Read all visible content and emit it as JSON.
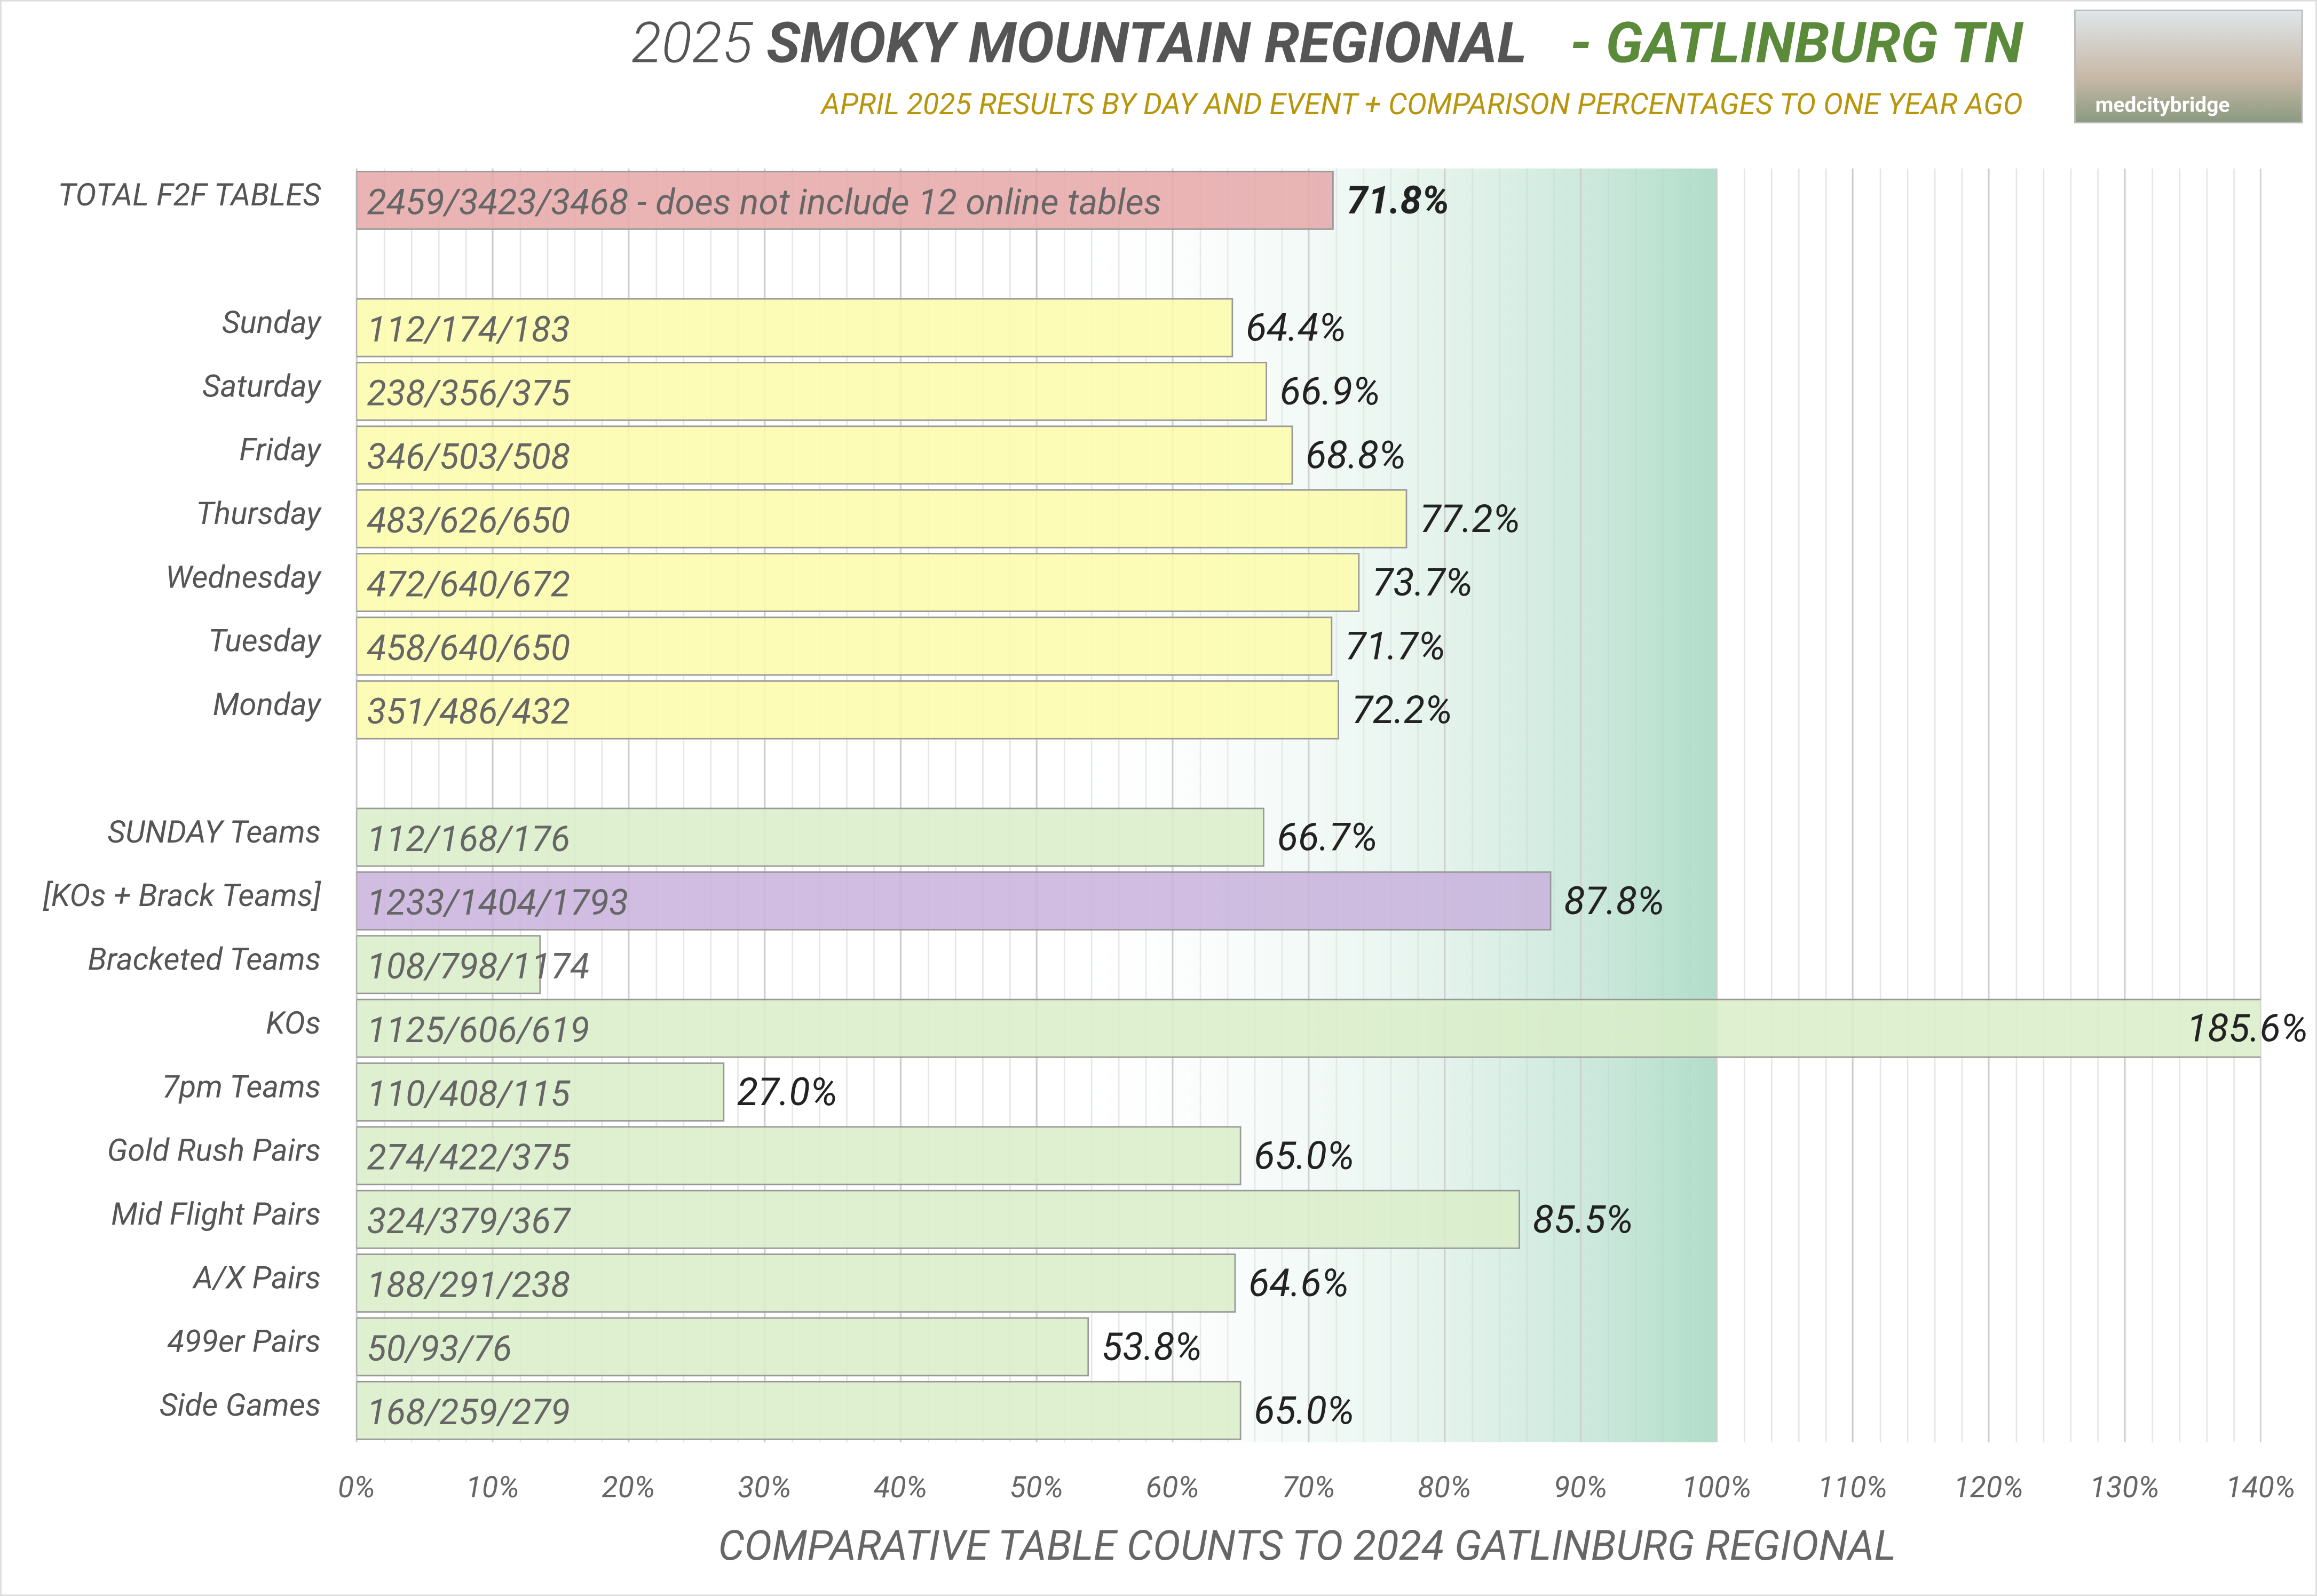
{
  "chart_data": {
    "type": "hbar",
    "title": {
      "year": "2025",
      "name": "SMOKY MOUNTAIN REGIONAL",
      "place": "- GATLINBURG TN"
    },
    "subtitle": "APRIL 2025 RESULTS BY DAY AND EVENT + COMPARISON PERCENTAGES TO ONE YEAR AGO",
    "logo_text": "medcitybridge",
    "x_label": "COMPARATIVE TABLE COUNTS TO 2024 GATLINBURG REGIONAL",
    "categories": [
      "TOTAL F2F TABLES",
      null,
      "Sunday",
      "Saturday",
      "Friday",
      "Thursday",
      "Wednesday",
      "Tuesday",
      "Monday",
      null,
      "SUNDAY Teams",
      "[KOs + Brack Teams]",
      "Bracketed Teams",
      "KOs",
      "7pm Teams",
      "Gold Rush Pairs",
      "Mid Flight Pairs",
      "A/X Pairs",
      "499er Pairs",
      "Side Games"
    ],
    "values": [
      71.8,
      null,
      64.4,
      66.9,
      68.8,
      77.2,
      73.7,
      71.7,
      72.2,
      null,
      66.7,
      87.8,
      13.5,
      185.6,
      27.0,
      65.0,
      85.5,
      64.6,
      53.8,
      65.0
    ],
    "value_labels": [
      "71.8%",
      null,
      "64.4%",
      "66.9%",
      "68.8%",
      "77.2%",
      "73.7%",
      "71.7%",
      "72.2%",
      null,
      "66.7%",
      "87.8%",
      null,
      "185.6%",
      "27.0%",
      "65.0%",
      "85.5%",
      "64.6%",
      "53.8%",
      "65.0%"
    ],
    "bar_labels": [
      "2459/3423/3468 - does not include 12 online tables",
      null,
      "112/174/183",
      "238/356/375",
      "346/503/508",
      "483/626/650",
      "472/640/672",
      "458/640/650",
      "351/486/432",
      null,
      "112/168/176",
      "1233/1404/1793",
      "108/798/1174",
      "1125/606/619",
      "110/408/115",
      "274/422/375",
      "324/379/367",
      "188/291/238",
      "50/93/76",
      "168/259/279"
    ],
    "colors": [
      "#e6a7a8",
      null,
      "#fbfca9",
      "#fbfca9",
      "#fbfca9",
      "#fbfca9",
      "#fbfca9",
      "#fbfca9",
      "#fbfca9",
      null,
      "#d9edc8",
      "#c8b1dc",
      "#d9edc8",
      "#d9edc8",
      "#d9edc8",
      "#d9edc8",
      "#d9edc8",
      "#d9edc8",
      "#d9edc8",
      "#d9edc8"
    ],
    "xlim": [
      0,
      140
    ],
    "xticks": [
      {
        "value": 0,
        "label": "0%"
      },
      {
        "value": 10,
        "label": "10%"
      },
      {
        "value": 20,
        "label": "20%"
      },
      {
        "value": 30,
        "label": "30%"
      },
      {
        "value": 40,
        "label": "40%"
      },
      {
        "value": 50,
        "label": "50%"
      },
      {
        "value": 60,
        "label": "60%"
      },
      {
        "value": 70,
        "label": "70%"
      },
      {
        "value": 80,
        "label": "80%"
      },
      {
        "value": 90,
        "label": "90%"
      },
      {
        "value": 100,
        "label": "100%"
      },
      {
        "value": 110,
        "label": "110%"
      },
      {
        "value": 120,
        "label": "120%"
      },
      {
        "value": 130,
        "label": "130%"
      },
      {
        "value": 140,
        "label": "140%"
      }
    ],
    "grid": true
  }
}
